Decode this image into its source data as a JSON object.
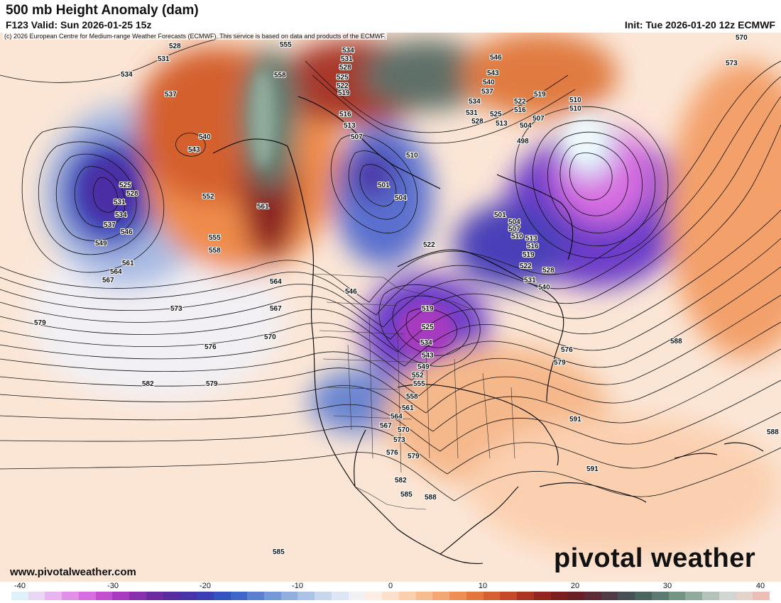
{
  "header": {
    "title": "500 mb Height Anomaly (dam)",
    "valid": "F123 Valid: Sun 2026-01-25 15z",
    "init": "Init: Tue 2026-01-20 12z ECMWF",
    "credit": "(c) 2026 European Centre for Medium-range Weather Forecasts (ECMWF). This service is based on data and products of the ECMWF."
  },
  "footer": {
    "website": "www.pivotalweather.com",
    "brand": "pivotal weather"
  },
  "scale": {
    "ticks": [
      "-40",
      "-30",
      "-20",
      "-10",
      "0",
      "10",
      "20",
      "30",
      "40"
    ],
    "colors": [
      "#dff2fb",
      "#e8d6f5",
      "#e9b4ef",
      "#e28fe8",
      "#d66de0",
      "#c34fd0",
      "#a73bbf",
      "#8a30ae",
      "#6e2aa0",
      "#582ba0",
      "#4a33a8",
      "#3d40b5",
      "#3552c2",
      "#3f66c8",
      "#5a80cf",
      "#7598d6",
      "#92aedd",
      "#adc3e5",
      "#c7d7ee",
      "#dde6f4",
      "#f0f0f5",
      "#fdeee4",
      "#fde0cc",
      "#fbcfae",
      "#f8bd8f",
      "#f4a772",
      "#ee8f55",
      "#e5763f",
      "#d65f31",
      "#c44a28",
      "#ad3622",
      "#95261f",
      "#7d1e1e",
      "#6a1f27",
      "#5c2b36",
      "#4f3a46",
      "#475055",
      "#4a6560",
      "#5b7b70",
      "#739383",
      "#90aa9b",
      "#b3c3b9",
      "#d1d6d2",
      "#e5d3cb",
      "#ecbfb6"
    ]
  },
  "contour_labels": [
    "528",
    "531",
    "534",
    "537",
    "540",
    "543",
    "525",
    "528",
    "531",
    "534",
    "537",
    "546",
    "549",
    "552",
    "555",
    "558",
    "561",
    "564",
    "567",
    "573",
    "579",
    "576",
    "570",
    "582",
    "579",
    "555",
    "558",
    "561",
    "564",
    "567",
    "534",
    "531",
    "528",
    "525",
    "522",
    "519",
    "516",
    "513",
    "507",
    "510",
    "501",
    "504",
    "522",
    "546",
    "519",
    "525",
    "534",
    "543",
    "549",
    "552",
    "555",
    "558",
    "561",
    "564",
    "567",
    "570",
    "573",
    "576",
    "579",
    "582",
    "585",
    "588",
    "585",
    "546",
    "543",
    "540",
    "537",
    "534",
    "531",
    "528",
    "525",
    "522",
    "519",
    "516",
    "513",
    "510",
    "507",
    "504",
    "498",
    "510",
    "501",
    "504",
    "507",
    "510",
    "513",
    "516",
    "519",
    "522",
    "528",
    "531",
    "540",
    "570",
    "573",
    "588",
    "576",
    "579",
    "591",
    "591",
    "588"
  ]
}
